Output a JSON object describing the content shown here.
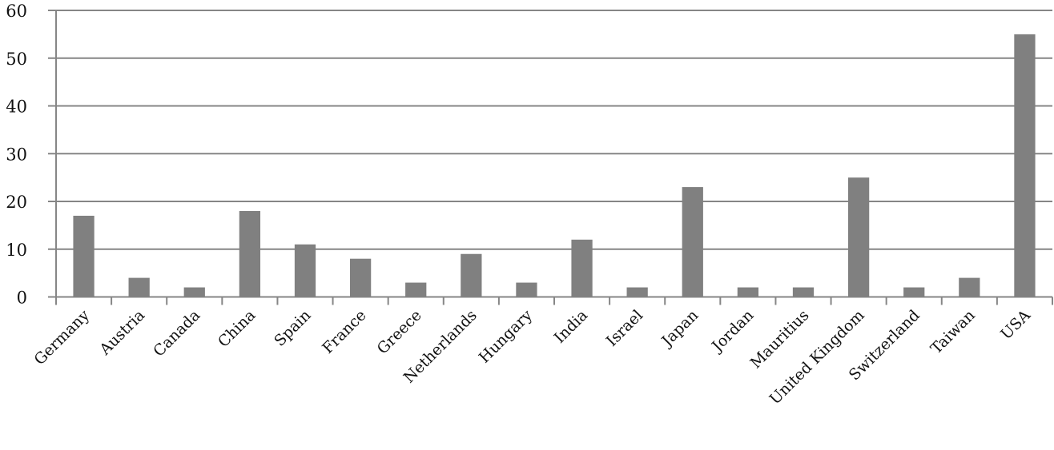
{
  "chart_data": {
    "type": "bar",
    "title": "",
    "xlabel": "",
    "ylabel": "",
    "categories": [
      "Germany",
      "Austria",
      "Canada",
      "China",
      "Spain",
      "France",
      "Greece",
      "Netherlands",
      "Hungary",
      "India",
      "Israel",
      "Japan",
      "Jordan",
      "Mauritius",
      "United Kingdom",
      "Switzerland",
      "Taiwan",
      "USA"
    ],
    "values": [
      17,
      4,
      2,
      18,
      11,
      8,
      3,
      9,
      3,
      12,
      2,
      23,
      2,
      2,
      25,
      2,
      4,
      55
    ],
    "ylim": [
      0,
      60
    ],
    "yticks": [
      0,
      10,
      20,
      30,
      40,
      50,
      60
    ],
    "grid": true,
    "legend": "none",
    "colors": {
      "bar": "#808080",
      "grid": "#868686",
      "axis": "#868686"
    }
  }
}
